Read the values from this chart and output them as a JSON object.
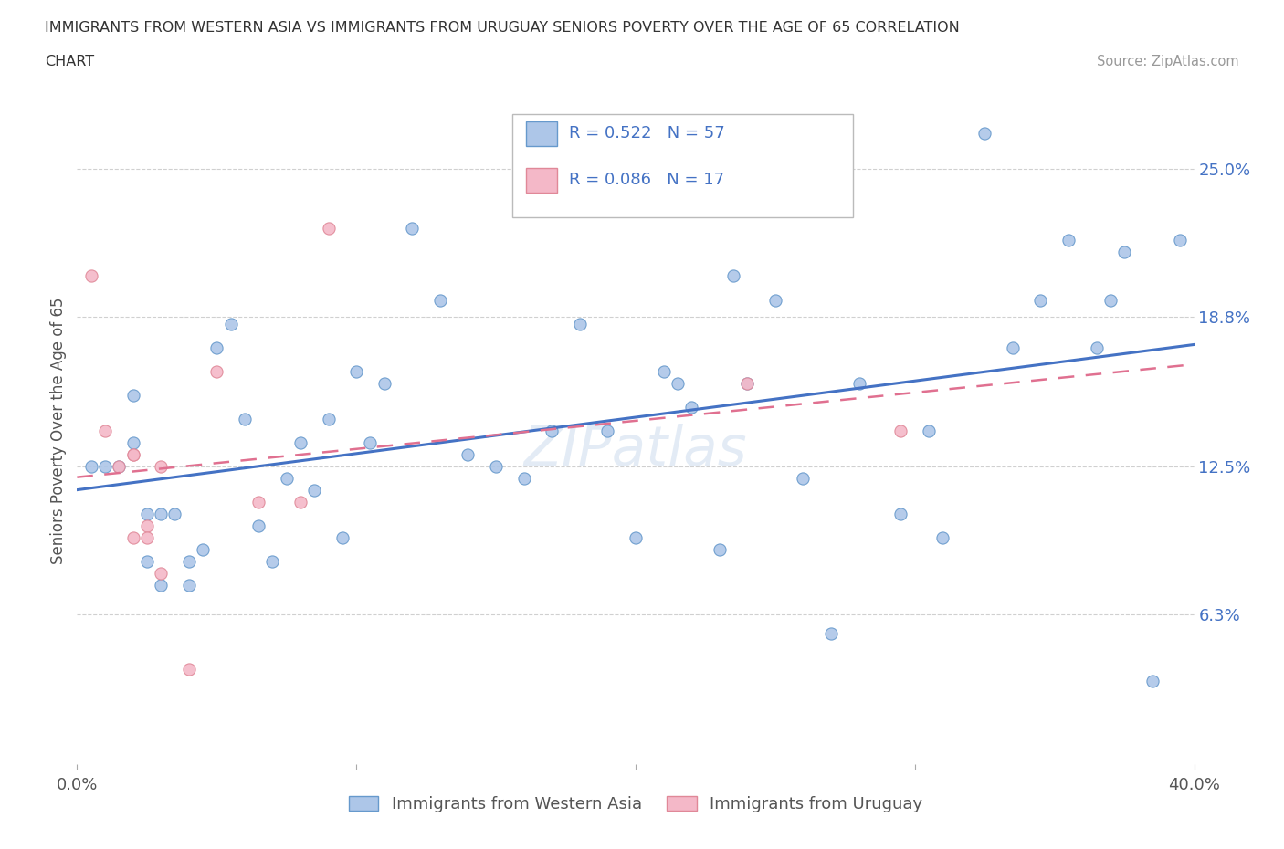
{
  "title_line1": "IMMIGRANTS FROM WESTERN ASIA VS IMMIGRANTS FROM URUGUAY SENIORS POVERTY OVER THE AGE OF 65 CORRELATION",
  "title_line2": "CHART",
  "source_text": "Source: ZipAtlas.com",
  "ylabel": "Seniors Poverty Over the Age of 65",
  "legend_labels": [
    "Immigrants from Western Asia",
    "Immigrants from Uruguay"
  ],
  "r1": 0.522,
  "n1": 57,
  "r2": 0.086,
  "n2": 17,
  "blue_scatter_color": "#adc6e8",
  "blue_edge_color": "#6699cc",
  "pink_scatter_color": "#f4b8c8",
  "pink_edge_color": "#e08898",
  "line_blue": "#4472c4",
  "line_pink": "#e07090",
  "text_blue": "#4472c4",
  "xlim": [
    0.0,
    0.4
  ],
  "ylim": [
    0.0,
    0.28
  ],
  "right_yticks": [
    0.063,
    0.125,
    0.188,
    0.25
  ],
  "right_yticklabels": [
    "6.3%",
    "12.5%",
    "18.8%",
    "25.0%"
  ],
  "xtick_positions": [
    0.0,
    0.1,
    0.2,
    0.3,
    0.4
  ],
  "xtick_labels": [
    "0.0%",
    "",
    "",
    "",
    "40.0%"
  ],
  "western_asia_x": [
    0.005,
    0.01,
    0.015,
    0.02,
    0.02,
    0.025,
    0.025,
    0.03,
    0.03,
    0.035,
    0.04,
    0.04,
    0.045,
    0.05,
    0.055,
    0.06,
    0.065,
    0.07,
    0.075,
    0.08,
    0.085,
    0.09,
    0.095,
    0.1,
    0.105,
    0.11,
    0.12,
    0.13,
    0.14,
    0.15,
    0.16,
    0.17,
    0.18,
    0.19,
    0.2,
    0.21,
    0.215,
    0.22,
    0.23,
    0.235,
    0.24,
    0.25,
    0.26,
    0.27,
    0.28,
    0.295,
    0.305,
    0.31,
    0.325,
    0.335,
    0.345,
    0.355,
    0.365,
    0.37,
    0.375,
    0.385,
    0.395
  ],
  "western_asia_y": [
    0.125,
    0.125,
    0.125,
    0.135,
    0.155,
    0.105,
    0.085,
    0.105,
    0.075,
    0.105,
    0.085,
    0.075,
    0.09,
    0.175,
    0.185,
    0.145,
    0.1,
    0.085,
    0.12,
    0.135,
    0.115,
    0.145,
    0.095,
    0.165,
    0.135,
    0.16,
    0.225,
    0.195,
    0.13,
    0.125,
    0.12,
    0.14,
    0.185,
    0.14,
    0.095,
    0.165,
    0.16,
    0.15,
    0.09,
    0.205,
    0.16,
    0.195,
    0.12,
    0.055,
    0.16,
    0.105,
    0.14,
    0.095,
    0.265,
    0.175,
    0.195,
    0.22,
    0.175,
    0.195,
    0.215,
    0.035,
    0.22
  ],
  "uruguay_x": [
    0.005,
    0.01,
    0.015,
    0.02,
    0.02,
    0.02,
    0.025,
    0.025,
    0.03,
    0.03,
    0.04,
    0.05,
    0.065,
    0.08,
    0.09,
    0.24,
    0.295
  ],
  "uruguay_y": [
    0.205,
    0.14,
    0.125,
    0.13,
    0.13,
    0.095,
    0.1,
    0.095,
    0.125,
    0.08,
    0.04,
    0.165,
    0.11,
    0.11,
    0.225,
    0.16,
    0.14
  ],
  "watermark": "ZIPatlas",
  "background_color": "#ffffff",
  "grid_color": "#d0d0d0"
}
